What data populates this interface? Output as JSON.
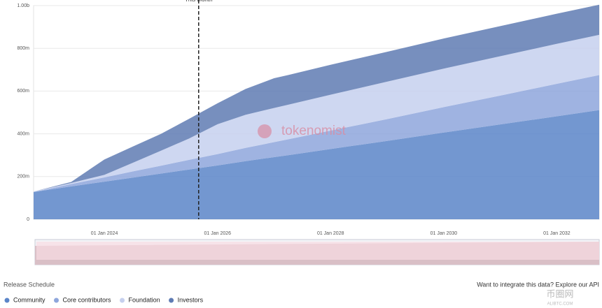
{
  "chart_data": {
    "type": "stacked-area",
    "annotation": {
      "text": "This Month",
      "x": "2025-09-01"
    },
    "watermark": "tokenomist",
    "x": [
      "2022-10-01",
      "2023-06-01",
      "2024-01-01",
      "2024-07-01",
      "2025-01-01",
      "2025-07-01",
      "2026-01-01",
      "2026-07-01",
      "2027-01-01",
      "2027-04-01",
      "2028-01-01",
      "2029-01-01",
      "2030-01-01",
      "2031-01-01",
      "2032-01-01",
      "2032-10-01"
    ],
    "xlim": [
      "2022-10-01",
      "2032-10-01"
    ],
    "xticks": [
      {
        "value": "2024-01-01",
        "label": "01 Jan 2024"
      },
      {
        "value": "2026-01-01",
        "label": "01 Jan 2026"
      },
      {
        "value": "2028-01-01",
        "label": "01 Jan 2028"
      },
      {
        "value": "2030-01-01",
        "label": "01 Jan 2030"
      },
      {
        "value": "2032-01-01",
        "label": "01 Jan 2032"
      }
    ],
    "ylim": [
      0,
      1000000000
    ],
    "yticks": [
      0,
      {
        "value": 200000000,
        "label": "200m"
      },
      {
        "value": 400000000,
        "label": "400m"
      },
      {
        "value": 600000000,
        "label": "600m"
      },
      {
        "value": 800000000,
        "label": "800m"
      },
      {
        "value": 1000000000,
        "label": "1.00b"
      }
    ],
    "grid": true,
    "series": [
      {
        "name": "Community",
        "color": "#5b85c8",
        "values": [
          128000000,
          154000000,
          176000000,
          195000000,
          214000000,
          233000000,
          252000000,
          272000000,
          291000000,
          300000000,
          329000000,
          367000000,
          406000000,
          444000000,
          482000000,
          511000000
        ]
      },
      {
        "name": "Core contributors",
        "color": "#8ea6dc",
        "values": [
          0,
          11000000,
          20000000,
          29000000,
          37000000,
          45000000,
          53000000,
          62000000,
          70000000,
          74000000,
          86000000,
          102000000,
          119000000,
          135000000,
          152000000,
          164000000
        ]
      },
      {
        "name": "Foundation",
        "color": "#c6d0ee",
        "values": [
          2000000,
          5000000,
          12000000,
          40000000,
          70000000,
          100000000,
          140000000,
          155000000,
          160000000,
          162000000,
          168000000,
          175000000,
          180000000,
          184000000,
          187000000,
          188000000
        ]
      },
      {
        "name": "Investors",
        "color": "#5f7bb3",
        "values": [
          0,
          5000000,
          72000000,
          76000000,
          79000000,
          92000000,
          98000000,
          121000000,
          139000000,
          139000000,
          140000000,
          140000000,
          141000000,
          141000000,
          141000000,
          141000000
        ]
      }
    ]
  },
  "footer": {
    "section_title": "Release Schedule",
    "api_text": "Want to integrate this data? Explore our API"
  },
  "corner_watermark": {
    "title": "币圈网",
    "subtitle": "ALIBTC.COM"
  }
}
